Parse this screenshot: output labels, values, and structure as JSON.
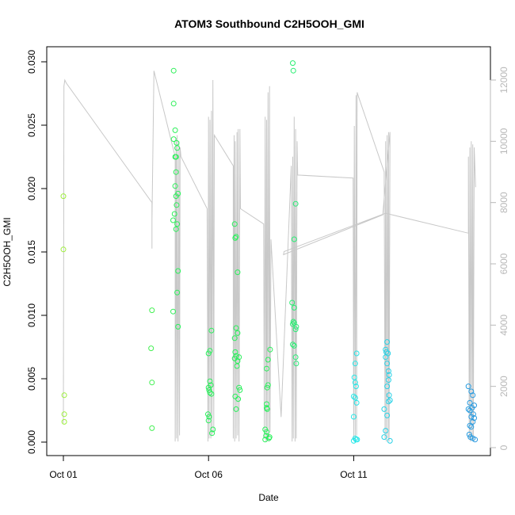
{
  "chart_data": {
    "type": "scatter",
    "title": "ATOM3 Southbound C2H5OOH_GMI",
    "xlabel": "Date",
    "ylabel": "C2H5OOH_GMI",
    "x_ticks": [
      "Oct 01",
      "Oct 06",
      "Oct 11"
    ],
    "x_range_days": [
      0,
      14
    ],
    "ylim": [
      0,
      0.03
    ],
    "y_ticks": [
      "0.000",
      "0.005",
      "0.010",
      "0.015",
      "0.020",
      "0.025",
      "0.030"
    ],
    "y2lim": [
      0,
      12500
    ],
    "y2_ticks": [
      "0",
      "2000",
      "4000",
      "6000",
      "8000",
      "10000",
      "12000"
    ],
    "grid": false,
    "legend": "none",
    "colors": {
      "point_start": "#9ef03c",
      "point_mid": "#28f05a",
      "point_cyan": "#28e8e8",
      "point_end": "#2898e0",
      "altitude_line": "#c8c8c8"
    },
    "points": [
      [
        0.0,
        0.0194
      ],
      [
        0.0,
        0.0152
      ],
      [
        0.03,
        0.0037
      ],
      [
        0.03,
        0.0022
      ],
      [
        0.03,
        0.0016
      ],
      [
        3.05,
        0.0104
      ],
      [
        3.05,
        0.0047
      ],
      [
        3.05,
        0.0011
      ],
      [
        3.02,
        0.0074
      ],
      [
        3.8,
        0.0293
      ],
      [
        3.8,
        0.0267
      ],
      [
        3.85,
        0.0246
      ],
      [
        3.8,
        0.0239
      ],
      [
        3.9,
        0.0236
      ],
      [
        3.92,
        0.0232
      ],
      [
        3.85,
        0.0225
      ],
      [
        3.88,
        0.0225
      ],
      [
        3.88,
        0.0213
      ],
      [
        3.85,
        0.0202
      ],
      [
        3.95,
        0.0196
      ],
      [
        3.88,
        0.0194
      ],
      [
        3.9,
        0.0187
      ],
      [
        3.83,
        0.018
      ],
      [
        3.78,
        0.0175
      ],
      [
        3.92,
        0.0172
      ],
      [
        3.88,
        0.0168
      ],
      [
        3.95,
        0.0135
      ],
      [
        3.92,
        0.0118
      ],
      [
        3.78,
        0.0103
      ],
      [
        3.95,
        0.0091
      ],
      [
        5.1,
        0.0088
      ],
      [
        5.05,
        0.0072
      ],
      [
        5.0,
        0.007
      ],
      [
        5.05,
        0.0048
      ],
      [
        5.08,
        0.0045
      ],
      [
        5.0,
        0.0043
      ],
      [
        5.02,
        0.0041
      ],
      [
        5.05,
        0.0039
      ],
      [
        5.1,
        0.0038
      ],
      [
        4.98,
        0.0022
      ],
      [
        5.02,
        0.002
      ],
      [
        5.0,
        0.0017
      ],
      [
        5.15,
        0.001
      ],
      [
        5.12,
        0.0007
      ],
      [
        5.9,
        0.0172
      ],
      [
        5.95,
        0.0162
      ],
      [
        5.92,
        0.0161
      ],
      [
        6.0,
        0.0134
      ],
      [
        5.95,
        0.009
      ],
      [
        6.0,
        0.0086
      ],
      [
        5.9,
        0.0082
      ],
      [
        5.92,
        0.0071
      ],
      [
        5.95,
        0.0068
      ],
      [
        5.9,
        0.0066
      ],
      [
        6.05,
        0.0067
      ],
      [
        6.0,
        0.0064
      ],
      [
        5.98,
        0.006
      ],
      [
        6.05,
        0.0043
      ],
      [
        6.08,
        0.0041
      ],
      [
        5.92,
        0.0036
      ],
      [
        6.02,
        0.0034
      ],
      [
        5.95,
        0.0026
      ],
      [
        7.12,
        0.0073
      ],
      [
        7.05,
        0.0065
      ],
      [
        7.0,
        0.0058
      ],
      [
        7.05,
        0.0045
      ],
      [
        7.02,
        0.0043
      ],
      [
        7.0,
        0.003
      ],
      [
        7.0,
        0.0027
      ],
      [
        7.02,
        0.0026
      ],
      [
        6.95,
        0.001
      ],
      [
        7.0,
        0.0008
      ],
      [
        6.98,
        0.0005
      ],
      [
        7.1,
        0.0004
      ],
      [
        7.08,
        0.0003
      ],
      [
        6.95,
        0.0002
      ],
      [
        7.9,
        0.0299
      ],
      [
        7.92,
        0.0293
      ],
      [
        8.0,
        0.0188
      ],
      [
        7.95,
        0.016
      ],
      [
        7.88,
        0.011
      ],
      [
        7.95,
        0.0106
      ],
      [
        7.92,
        0.0095
      ],
      [
        7.95,
        0.0094
      ],
      [
        7.9,
        0.0093
      ],
      [
        8.02,
        0.0091
      ],
      [
        8.0,
        0.0089
      ],
      [
        7.9,
        0.0077
      ],
      [
        7.95,
        0.0076
      ],
      [
        8.0,
        0.0067
      ],
      [
        8.02,
        0.0062
      ],
      [
        10.1,
        0.007
      ],
      [
        10.05,
        0.0062
      ],
      [
        10.02,
        0.0051
      ],
      [
        10.05,
        0.0047
      ],
      [
        10.08,
        0.0044
      ],
      [
        10.0,
        0.0036
      ],
      [
        10.05,
        0.0035
      ],
      [
        10.1,
        0.0031
      ],
      [
        10.0,
        0.002
      ],
      [
        10.05,
        0.0003
      ],
      [
        10.08,
        0.0002
      ],
      [
        10.0,
        0.0001
      ],
      [
        10.12,
        0.0002
      ],
      [
        11.15,
        0.0079
      ],
      [
        11.1,
        0.0073
      ],
      [
        11.12,
        0.0071
      ],
      [
        11.18,
        0.007
      ],
      [
        11.1,
        0.0067
      ],
      [
        11.15,
        0.0062
      ],
      [
        11.2,
        0.0056
      ],
      [
        11.22,
        0.0053
      ],
      [
        11.2,
        0.0049
      ],
      [
        11.15,
        0.0044
      ],
      [
        11.22,
        0.0037
      ],
      [
        11.25,
        0.0033
      ],
      [
        11.2,
        0.0032
      ],
      [
        11.05,
        0.0026
      ],
      [
        11.15,
        0.0021
      ],
      [
        11.1,
        0.0009
      ],
      [
        11.05,
        0.0004
      ],
      [
        11.25,
        0.0001
      ],
      [
        13.95,
        0.0044
      ],
      [
        14.05,
        0.004
      ],
      [
        14.1,
        0.0037
      ],
      [
        14.0,
        0.0031
      ],
      [
        14.15,
        0.0029
      ],
      [
        14.08,
        0.0027
      ],
      [
        13.95,
        0.0026
      ],
      [
        14.0,
        0.0025
      ],
      [
        14.12,
        0.0022
      ],
      [
        14.05,
        0.002
      ],
      [
        14.15,
        0.0019
      ],
      [
        14.1,
        0.0016
      ],
      [
        14.0,
        0.0013
      ],
      [
        14.05,
        0.0012
      ],
      [
        13.98,
        0.0006
      ],
      [
        14.02,
        0.0004
      ],
      [
        14.1,
        0.0003
      ],
      [
        14.18,
        0.0002
      ]
    ],
    "altitude_line": [
      [
        0.0,
        800
      ],
      [
        0.02,
        11800
      ],
      [
        0.05,
        12000
      ],
      [
        0.1,
        11900
      ],
      [
        3.05,
        8000
      ],
      [
        3.05,
        6500
      ],
      [
        3.05,
        7400
      ],
      [
        3.12,
        12300
      ],
      [
        3.85,
        9500
      ],
      [
        3.85,
        200
      ],
      [
        3.88,
        10100
      ],
      [
        3.9,
        300
      ],
      [
        3.92,
        10200
      ],
      [
        3.95,
        200
      ],
      [
        3.98,
        10000
      ],
      [
        4.0,
        400
      ],
      [
        4.02,
        9800
      ],
      [
        4.05,
        9500
      ],
      [
        4.95,
        7800
      ],
      [
        4.98,
        200
      ],
      [
        5.0,
        10800
      ],
      [
        5.02,
        300
      ],
      [
        5.05,
        10700
      ],
      [
        5.08,
        300
      ],
      [
        5.1,
        11000
      ],
      [
        5.12,
        400
      ],
      [
        5.15,
        12000
      ],
      [
        5.18,
        500
      ],
      [
        5.2,
        10200
      ],
      [
        5.85,
        9200
      ],
      [
        5.85,
        300
      ],
      [
        5.88,
        10200
      ],
      [
        5.9,
        200
      ],
      [
        5.92,
        10000
      ],
      [
        5.95,
        300
      ],
      [
        5.98,
        10300
      ],
      [
        6.0,
        400
      ],
      [
        6.02,
        10400
      ],
      [
        6.05,
        200
      ],
      [
        6.08,
        10400
      ],
      [
        6.1,
        7800
      ],
      [
        6.9,
        7300
      ],
      [
        6.92,
        300
      ],
      [
        6.95,
        10800
      ],
      [
        6.98,
        200
      ],
      [
        7.0,
        10700
      ],
      [
        7.02,
        300
      ],
      [
        7.05,
        11600
      ],
      [
        7.08,
        200
      ],
      [
        7.1,
        11800
      ],
      [
        7.12,
        500
      ],
      [
        7.15,
        6800
      ],
      [
        7.5,
        1000
      ],
      [
        7.85,
        9200
      ],
      [
        7.88,
        200
      ],
      [
        7.9,
        9500
      ],
      [
        7.92,
        300
      ],
      [
        7.95,
        10800
      ],
      [
        7.98,
        200
      ],
      [
        8.0,
        10400
      ],
      [
        8.02,
        300
      ],
      [
        8.05,
        10000
      ],
      [
        8.07,
        8900
      ],
      [
        9.98,
        8800
      ],
      [
        10.0,
        300
      ],
      [
        10.02,
        10500
      ],
      [
        10.05,
        200
      ],
      [
        10.08,
        11500
      ],
      [
        10.1,
        400
      ],
      [
        10.12,
        11600
      ],
      [
        10.15,
        11500
      ],
      [
        11.05,
        9000
      ],
      [
        11.08,
        300
      ],
      [
        11.1,
        10000
      ],
      [
        11.12,
        200
      ],
      [
        11.15,
        10200
      ],
      [
        11.18,
        300
      ],
      [
        11.2,
        10300
      ],
      [
        11.22,
        200
      ],
      [
        11.25,
        10300
      ],
      [
        11.0,
        7600
      ],
      [
        7.58,
        6300
      ],
      [
        7.6,
        6400
      ],
      [
        11.1,
        7650
      ],
      [
        13.95,
        7000
      ],
      [
        13.95,
        9500
      ],
      [
        13.98,
        300
      ],
      [
        14.0,
        9800
      ],
      [
        14.02,
        200
      ],
      [
        14.05,
        10000
      ],
      [
        14.08,
        300
      ],
      [
        14.1,
        9900
      ],
      [
        14.12,
        200
      ],
      [
        14.15,
        9800
      ],
      [
        14.2,
        8500
      ]
    ]
  }
}
